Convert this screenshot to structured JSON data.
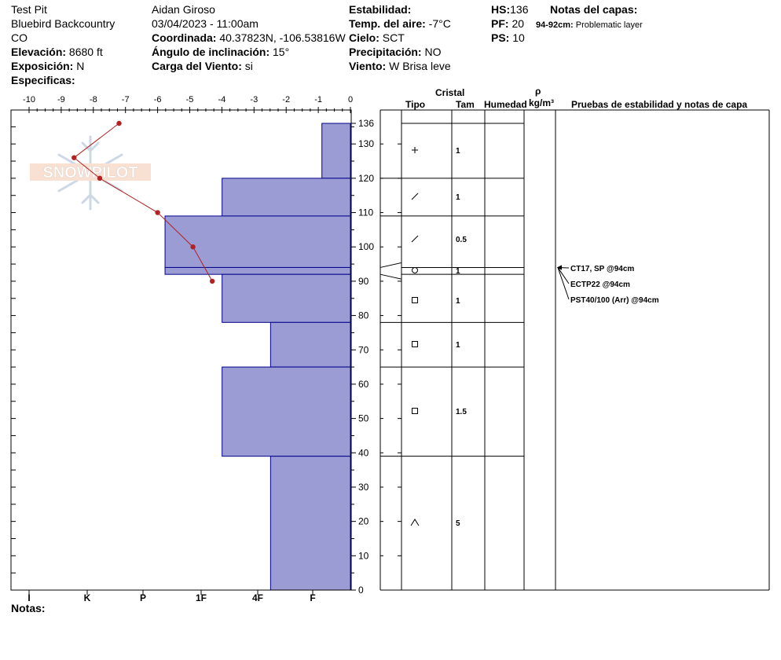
{
  "header": {
    "col1": {
      "pit_name": "Test Pit",
      "location": "Bluebird Backcountry",
      "state": "CO",
      "elevation_label": "Elevación:",
      "elevation": "8680 ft",
      "aspect_label": "Exposición:",
      "aspect": "N",
      "specifics_label": "Especificas:"
    },
    "col2": {
      "observer": "Aidan Giroso",
      "datetime": "03/04/2023 - 11:00am",
      "coord_label": "Coordinada:",
      "coord": "40.37823N, -106.53816W",
      "slope_label": "Ángulo de inclinación:",
      "slope": "15°",
      "wind_load_label": "Carga del Viento:",
      "wind_load": "si"
    },
    "col3": {
      "stability_label": "Estabilidad:",
      "air_temp_label": "Temp. del aire:",
      "air_temp": "-7°C",
      "sky_label": "Cielo:",
      "sky": "SCT",
      "precip_label": "Precipitación:",
      "precip": "NO",
      "wind_label": "Viento:",
      "wind": "W Brisa leve"
    },
    "col4": {
      "hs_label": "HS:",
      "hs": "136",
      "pf_label": "PF:",
      "pf": "20",
      "ps_label": "PS:",
      "ps": "10"
    },
    "layer_notes": {
      "title": "Notas del capas:",
      "note_range": "94-92cm:",
      "note_text": "Problematic layer"
    }
  },
  "table_headers": {
    "crystal": "Cristal",
    "type": "Tipo",
    "size": "Tam",
    "moisture": "Humedad",
    "rho": "ρ",
    "density_unit": "kg/m³",
    "tests": "Pruebas de estabilidad y notas de capa"
  },
  "footer": {
    "notes_label": "Notas:"
  },
  "watermark": "SNOWPILOT",
  "colors": {
    "hardness_fill": "#9c9cd5",
    "hardness_stroke": "#00008b",
    "temp_line": "#b22222"
  },
  "chart_data": {
    "type": "snow_profile",
    "depth_axis": {
      "min": 0,
      "max": 136,
      "ticks": [
        0,
        10,
        20,
        30,
        40,
        50,
        60,
        70,
        80,
        90,
        100,
        110,
        120,
        130,
        136
      ]
    },
    "temp_axis": {
      "min": -10,
      "max": 0,
      "ticks": [
        "-10",
        "-9",
        "-8",
        "-7",
        "-6",
        "-5",
        "-4",
        "-3",
        "-2",
        "-1",
        "0"
      ]
    },
    "hardness_axis": {
      "labels": [
        "I",
        "K",
        "P",
        "1F",
        "4F",
        "F"
      ]
    },
    "layers": [
      {
        "top": 136,
        "bottom": 120,
        "hardness": "F",
        "hardness_value": 1,
        "grain_icon": "plus",
        "size": "1"
      },
      {
        "top": 120,
        "bottom": 109,
        "hardness": "1F",
        "hardness_value": 4.5,
        "grain_icon": "slash",
        "size": "1"
      },
      {
        "top": 109,
        "bottom": 94,
        "hardness": "P",
        "hardness_value": 6.5,
        "grain_icon": "slash",
        "size": "0.5"
      },
      {
        "top": 94,
        "bottom": 92,
        "hardness": "P",
        "hardness_value": 6.5,
        "grain_icon": "circle",
        "size": "1"
      },
      {
        "top": 92,
        "bottom": 78,
        "hardness": "1F",
        "hardness_value": 4.5,
        "grain_icon": "square",
        "size": "1"
      },
      {
        "top": 78,
        "bottom": 65,
        "hardness": "4F",
        "hardness_value": 2.8,
        "grain_icon": "square",
        "size": "1"
      },
      {
        "top": 65,
        "bottom": 39,
        "hardness": "1F",
        "hardness_value": 4.5,
        "grain_icon": "square",
        "size": "1.5"
      },
      {
        "top": 39,
        "bottom": 0,
        "hardness": "4F",
        "hardness_value": 2.8,
        "grain_icon": "caret",
        "size": "5"
      }
    ],
    "temperature_profile": [
      {
        "depth": 136,
        "temp": -7.2
      },
      {
        "depth": 126,
        "temp": -8.6
      },
      {
        "depth": 120,
        "temp": -7.8
      },
      {
        "depth": 110,
        "temp": -6.0
      },
      {
        "depth": 100,
        "temp": -4.9
      },
      {
        "depth": 90,
        "temp": -4.3
      }
    ],
    "stability_tests": [
      {
        "label": "CT17, SP @94cm",
        "depth": 94
      },
      {
        "label": "ECTP22 @94cm",
        "depth": 94
      },
      {
        "label": "PST40/100 (Arr) @94cm",
        "depth": 94
      }
    ]
  }
}
